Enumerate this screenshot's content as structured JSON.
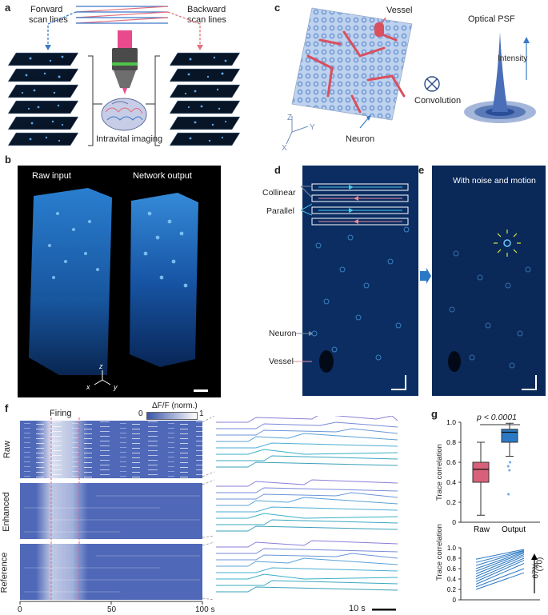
{
  "panels": {
    "a": {
      "label": "a",
      "forward": "Forward",
      "scan_lines_l": "scan lines",
      "backward": "Backward",
      "scan_lines_r": "scan lines",
      "intravital": "Intravital imaging"
    },
    "b": {
      "label": "b",
      "raw": "Raw input",
      "network": "Network output"
    },
    "c": {
      "label": "c",
      "vessel": "Vessel",
      "psf": "Optical PSF",
      "intensity": "Intensity",
      "convolution": "Convolution",
      "neuron": "Neuron"
    },
    "d": {
      "label": "d",
      "collinear": "Collinear",
      "parallel": "Parallel",
      "neuron": "Neuron",
      "vessel": "Vessel"
    },
    "e": {
      "label": "e",
      "noise": "With noise and motion"
    },
    "f": {
      "label": "f",
      "firing": "Firing",
      "colorbar_title": "ΔF/F (norm.)",
      "cb_min": "0",
      "cb_max": "1",
      "rows": [
        "Raw",
        "Enhanced",
        "Reference"
      ],
      "ticks": [
        "0",
        "50",
        "100 s"
      ],
      "scale": "10 s"
    },
    "g": {
      "label": "g",
      "pvalue": "p < 0.0001",
      "ylabel": "Trace correlation",
      "percent": "67%",
      "count": "(70)"
    }
  },
  "chart_data": [
    {
      "type": "box",
      "categories": [
        "Raw",
        "Output"
      ],
      "ylabel": "Trace correlation",
      "ylim": [
        0,
        1.0
      ],
      "yticks": [
        "0",
        "0.2",
        "0.4",
        "0.6",
        "0.8",
        "1.0"
      ],
      "boxes": [
        {
          "name": "Raw",
          "min": 0.07,
          "q1": 0.4,
          "median": 0.53,
          "q3": 0.6,
          "max": 0.8,
          "color": "#d9607a"
        },
        {
          "name": "Output",
          "min": 0.66,
          "q1": 0.8,
          "median": 0.9,
          "q3": 0.93,
          "max": 0.99,
          "color": "#2b79c4",
          "outliers": [
            0.6,
            0.56,
            0.52,
            0.28
          ]
        }
      ]
    },
    {
      "type": "line",
      "categories": [
        "Raw",
        "Output"
      ],
      "ylabel": "Trace correlation",
      "ylim": [
        0,
        1.0
      ],
      "yticks": [
        "0",
        "0.2",
        "0.4",
        "0.6",
        "0.8",
        "1.0"
      ],
      "lines_start": [
        0.78,
        0.72,
        0.66,
        0.6,
        0.55,
        0.5,
        0.45,
        0.4,
        0.35,
        0.3,
        0.25,
        0.2
      ],
      "lines_end": [
        0.97,
        0.95,
        0.94,
        0.92,
        0.9,
        0.87,
        0.84,
        0.8,
        0.76,
        0.7,
        0.6,
        0.52
      ]
    }
  ]
}
